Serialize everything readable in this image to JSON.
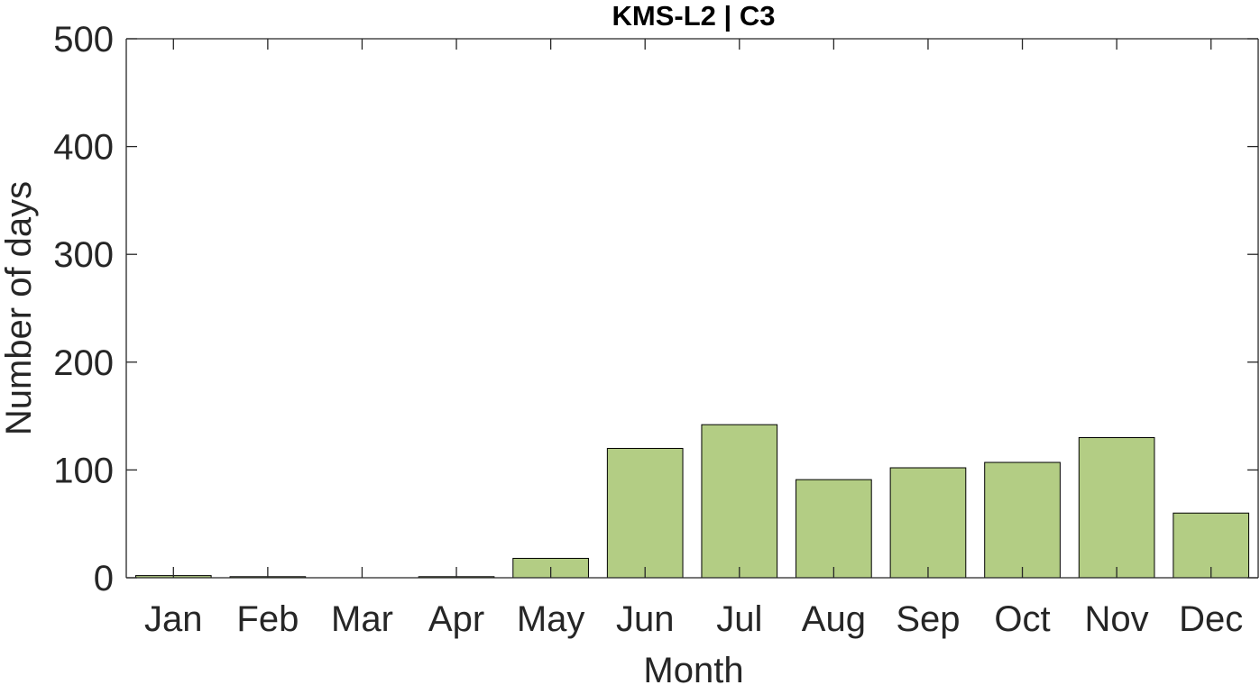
{
  "chart_data": {
    "type": "bar",
    "title": "KMS-L2 | C3",
    "xlabel": "Month",
    "ylabel": "Number of days",
    "categories": [
      "Jan",
      "Feb",
      "Mar",
      "Apr",
      "May",
      "Jun",
      "Jul",
      "Aug",
      "Sep",
      "Oct",
      "Nov",
      "Dec"
    ],
    "values": [
      2,
      1,
      0,
      1,
      18,
      120,
      142,
      91,
      102,
      107,
      130,
      60
    ],
    "ylim": [
      0,
      500
    ],
    "yticks": [
      0,
      100,
      200,
      300,
      400,
      500
    ],
    "grid": false,
    "legend": "none",
    "bar_color": "#b3cd84",
    "bar_edge_color": "#000000",
    "axis_color": "#262626"
  }
}
